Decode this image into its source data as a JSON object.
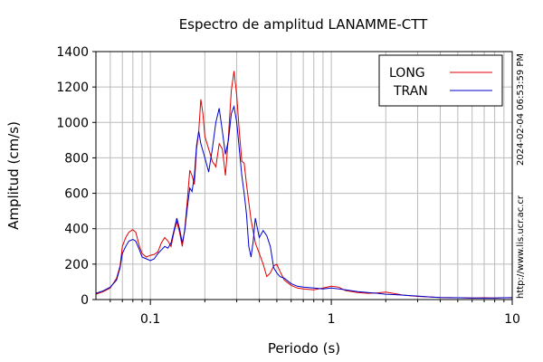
{
  "chart_data": {
    "type": "line",
    "title": "Espectro de amplitud LANAMME-CTT",
    "xlabel": "Periodo (s)",
    "ylabel": "Amplitud (cm/s)",
    "x_scale": "log",
    "xlim": [
      0.05,
      10
    ],
    "ylim": [
      0,
      1400
    ],
    "x_ticks": [
      0.1,
      1,
      10
    ],
    "x_tick_labels": [
      "0.1",
      "1",
      "10"
    ],
    "y_ticks": [
      0,
      200,
      400,
      600,
      800,
      1000,
      1200,
      1400
    ],
    "y_tick_labels": [
      "0",
      "200",
      "400",
      "600",
      "800",
      "1000",
      "1200",
      "1400"
    ],
    "grid": true,
    "legend_position": "top-right",
    "side_labels": [
      "2024-02-04 06:53:59 PM",
      "http://www.lis.ucr.ac.cr"
    ],
    "series": [
      {
        "name": "LONG",
        "color": "#dd0000",
        "points": [
          [
            0.05,
            30
          ],
          [
            0.055,
            45
          ],
          [
            0.06,
            65
          ],
          [
            0.065,
            120
          ],
          [
            0.068,
            190
          ],
          [
            0.07,
            300
          ],
          [
            0.073,
            350
          ],
          [
            0.076,
            380
          ],
          [
            0.08,
            395
          ],
          [
            0.083,
            380
          ],
          [
            0.087,
            300
          ],
          [
            0.09,
            260
          ],
          [
            0.095,
            240
          ],
          [
            0.1,
            250
          ],
          [
            0.105,
            255
          ],
          [
            0.11,
            270
          ],
          [
            0.115,
            320
          ],
          [
            0.12,
            350
          ],
          [
            0.125,
            330
          ],
          [
            0.13,
            300
          ],
          [
            0.135,
            380
          ],
          [
            0.14,
            440
          ],
          [
            0.145,
            380
          ],
          [
            0.15,
            300
          ],
          [
            0.155,
            400
          ],
          [
            0.16,
            560
          ],
          [
            0.165,
            730
          ],
          [
            0.17,
            700
          ],
          [
            0.175,
            650
          ],
          [
            0.18,
            850
          ],
          [
            0.185,
            950
          ],
          [
            0.19,
            1130
          ],
          [
            0.195,
            1050
          ],
          [
            0.2,
            920
          ],
          [
            0.21,
            850
          ],
          [
            0.22,
            780
          ],
          [
            0.23,
            750
          ],
          [
            0.24,
            880
          ],
          [
            0.25,
            850
          ],
          [
            0.26,
            700
          ],
          [
            0.27,
            920
          ],
          [
            0.28,
            1180
          ],
          [
            0.29,
            1290
          ],
          [
            0.3,
            1150
          ],
          [
            0.31,
            950
          ],
          [
            0.32,
            780
          ],
          [
            0.33,
            770
          ],
          [
            0.34,
            650
          ],
          [
            0.36,
            450
          ],
          [
            0.38,
            320
          ],
          [
            0.4,
            260
          ],
          [
            0.42,
            200
          ],
          [
            0.44,
            130
          ],
          [
            0.46,
            150
          ],
          [
            0.48,
            190
          ],
          [
            0.5,
            200
          ],
          [
            0.52,
            160
          ],
          [
            0.55,
            110
          ],
          [
            0.6,
            80
          ],
          [
            0.65,
            65
          ],
          [
            0.7,
            60
          ],
          [
            0.8,
            55
          ],
          [
            0.9,
            65
          ],
          [
            1.0,
            75
          ],
          [
            1.1,
            70
          ],
          [
            1.2,
            50
          ],
          [
            1.4,
            40
          ],
          [
            1.6,
            35
          ],
          [
            1.8,
            38
          ],
          [
            2.0,
            42
          ],
          [
            2.2,
            35
          ],
          [
            2.5,
            25
          ],
          [
            3.0,
            18
          ],
          [
            3.5,
            15
          ],
          [
            4.0,
            12
          ],
          [
            5.0,
            10
          ],
          [
            6.0,
            8
          ],
          [
            7.0,
            10
          ],
          [
            8.0,
            8
          ],
          [
            9.0,
            10
          ],
          [
            10.0,
            12
          ]
        ]
      },
      {
        "name": "TRAN",
        "color": "#0000cc",
        "points": [
          [
            0.05,
            35
          ],
          [
            0.055,
            50
          ],
          [
            0.06,
            70
          ],
          [
            0.065,
            110
          ],
          [
            0.068,
            180
          ],
          [
            0.07,
            260
          ],
          [
            0.073,
            300
          ],
          [
            0.076,
            330
          ],
          [
            0.08,
            340
          ],
          [
            0.083,
            330
          ],
          [
            0.087,
            280
          ],
          [
            0.09,
            240
          ],
          [
            0.095,
            230
          ],
          [
            0.1,
            220
          ],
          [
            0.105,
            230
          ],
          [
            0.11,
            260
          ],
          [
            0.115,
            280
          ],
          [
            0.12,
            300
          ],
          [
            0.125,
            290
          ],
          [
            0.13,
            320
          ],
          [
            0.135,
            390
          ],
          [
            0.14,
            460
          ],
          [
            0.145,
            400
          ],
          [
            0.15,
            320
          ],
          [
            0.155,
            390
          ],
          [
            0.16,
            520
          ],
          [
            0.165,
            630
          ],
          [
            0.17,
            610
          ],
          [
            0.175,
            700
          ],
          [
            0.18,
            870
          ],
          [
            0.185,
            950
          ],
          [
            0.19,
            880
          ],
          [
            0.2,
            800
          ],
          [
            0.21,
            720
          ],
          [
            0.22,
            850
          ],
          [
            0.23,
            1000
          ],
          [
            0.24,
            1080
          ],
          [
            0.25,
            950
          ],
          [
            0.26,
            820
          ],
          [
            0.27,
            900
          ],
          [
            0.28,
            1050
          ],
          [
            0.29,
            1090
          ],
          [
            0.3,
            1000
          ],
          [
            0.31,
            850
          ],
          [
            0.32,
            700
          ],
          [
            0.33,
            600
          ],
          [
            0.34,
            480
          ],
          [
            0.35,
            300
          ],
          [
            0.36,
            240
          ],
          [
            0.37,
            330
          ],
          [
            0.38,
            460
          ],
          [
            0.4,
            350
          ],
          [
            0.42,
            390
          ],
          [
            0.44,
            360
          ],
          [
            0.46,
            300
          ],
          [
            0.48,
            180
          ],
          [
            0.5,
            150
          ],
          [
            0.52,
            130
          ],
          [
            0.55,
            120
          ],
          [
            0.6,
            90
          ],
          [
            0.65,
            75
          ],
          [
            0.7,
            70
          ],
          [
            0.8,
            65
          ],
          [
            0.9,
            60
          ],
          [
            1.0,
            65
          ],
          [
            1.1,
            60
          ],
          [
            1.2,
            55
          ],
          [
            1.4,
            45
          ],
          [
            1.6,
            40
          ],
          [
            1.8,
            35
          ],
          [
            2.0,
            30
          ],
          [
            2.2,
            28
          ],
          [
            2.5,
            25
          ],
          [
            3.0,
            20
          ],
          [
            3.5,
            15
          ],
          [
            4.0,
            12
          ],
          [
            5.0,
            10
          ],
          [
            6.0,
            9
          ],
          [
            7.0,
            8
          ],
          [
            8.0,
            9
          ],
          [
            9.0,
            10
          ],
          [
            10.0,
            10
          ]
        ]
      }
    ]
  }
}
